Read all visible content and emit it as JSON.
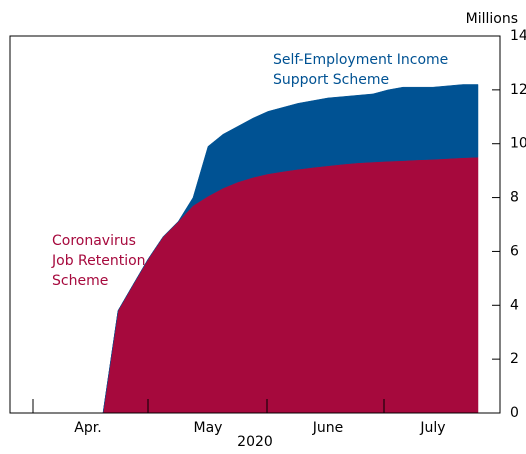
{
  "chart_data": {
    "type": "stacked-area",
    "y_unit": "Millions",
    "x_label": "2020",
    "categories": [
      null,
      null,
      null,
      null,
      "Apr.",
      null,
      null,
      null,
      null,
      null,
      null,
      null,
      "May",
      null,
      null,
      null,
      null,
      null,
      null,
      null,
      "June",
      null,
      null,
      null,
      null,
      null,
      null,
      "July",
      null,
      null,
      null
    ],
    "series": [
      {
        "name": [
          "Coronavirus",
          "Job Retention",
          "Scheme"
        ],
        "color": "#a6093d",
        "values": [
          null,
          null,
          null,
          null,
          null,
          0,
          3.8,
          4.76,
          5.71,
          6.54,
          7.1,
          7.7,
          8.05,
          8.35,
          8.58,
          8.75,
          8.88,
          8.97,
          9.05,
          9.12,
          9.18,
          9.24,
          9.29,
          9.32,
          9.35,
          9.37,
          9.4,
          9.42,
          9.45,
          9.48,
          9.5
        ]
      },
      {
        "name": [
          "Self-Employment Income",
          "Support Scheme"
        ],
        "color": "#005293",
        "values": [
          null,
          null,
          null,
          null,
          null,
          0,
          0,
          0,
          0,
          0,
          0,
          0.3,
          1.85,
          2.0,
          2.07,
          2.2,
          2.32,
          2.38,
          2.45,
          2.48,
          2.52,
          2.51,
          2.51,
          2.53,
          2.65,
          2.73,
          2.7,
          2.68,
          2.7,
          2.72,
          2.7
        ]
      }
    ],
    "ylim": [
      0,
      14
    ],
    "yticks": [
      0,
      2,
      4,
      6,
      8,
      10,
      12,
      14
    ]
  }
}
